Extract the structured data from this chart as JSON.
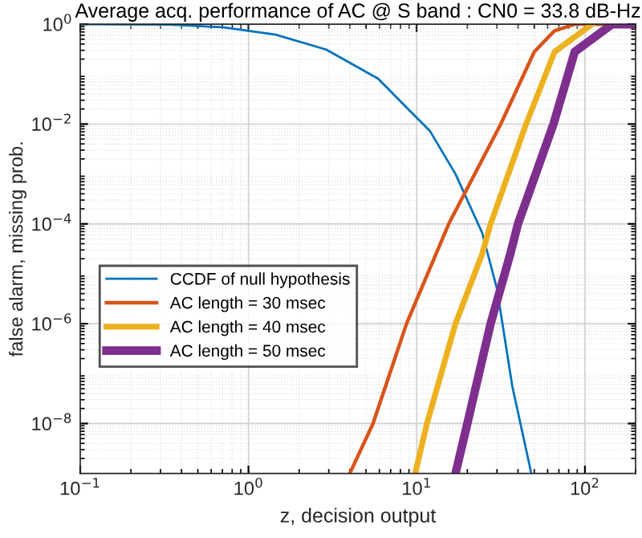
{
  "chart_data": {
    "type": "line",
    "title": "Average acq. performance of AC @ S band : CN0 = 33.8 dB-Hz",
    "xlabel": "z, decision output",
    "ylabel": "false alarm, missing prob.",
    "log": "xy",
    "grid": true,
    "legend": "center left",
    "line_style": "solid",
    "marker": "none",
    "xlim": [
      0.1,
      200
    ],
    "ylim": [
      1e-09,
      1
    ],
    "xticks": [
      {
        "value": 0.1,
        "label": "10$^{−1}$"
      },
      {
        "value": 1,
        "label": "10$^{0}$"
      },
      {
        "value": 10,
        "label": "10$^{1}$"
      },
      {
        "value": 100,
        "label": "10$^{2}$"
      }
    ],
    "yticks": [
      {
        "value": 1e-08,
        "label": "10$^{−8}$"
      },
      {
        "value": 1e-06,
        "label": "10$^{−6}$"
      },
      {
        "value": 0.0001,
        "label": "10$^{−4}$"
      },
      {
        "value": 0.01,
        "label": "10$^{−2}$"
      },
      {
        "value": 1,
        "label": "10$^{0}$"
      }
    ],
    "series": [
      {
        "name": "CCDF of null hypothesis",
        "color": "#0072bd",
        "x": [
          0.1,
          0.34,
          0.7,
          1.45,
          2.9,
          5.9,
          12,
          17,
          24.5,
          30,
          37,
          48
        ],
        "values": [
          1,
          0.98,
          0.87,
          0.62,
          0.31,
          0.081,
          0.0072,
          0.001,
          6.6e-05,
          5e-06,
          5.6e-08,
          1e-09
        ]
      },
      {
        "name": "AC length = 30 msec",
        "color": "#d95319",
        "x": [
          4.0,
          5.5,
          8.7,
          15.5,
          31.6,
          50,
          66,
          87,
          200
        ],
        "values": [
          1e-09,
          1e-08,
          1e-06,
          0.0001,
          0.01,
          0.28,
          0.74,
          1,
          1
        ]
      },
      {
        "name": "AC length = 40 msec",
        "color": "#edb120",
        "x": [
          9.8,
          11.5,
          17,
          24.5,
          27.5,
          44.7,
          66,
          110
        ],
        "values": [
          1e-09,
          1e-08,
          1e-06,
          2.5e-05,
          0.0001,
          0.01,
          0.28,
          1
        ]
      },
      {
        "name": "AC length = 50 msec",
        "color": "#7e2f8e",
        "x": [
          17,
          20,
          27.5,
          36,
          40,
          65,
          87,
          145,
          200
        ],
        "values": [
          1e-09,
          1e-08,
          1e-06,
          2.5e-05,
          0.0001,
          0.01,
          0.28,
          1,
          1
        ]
      }
    ]
  }
}
